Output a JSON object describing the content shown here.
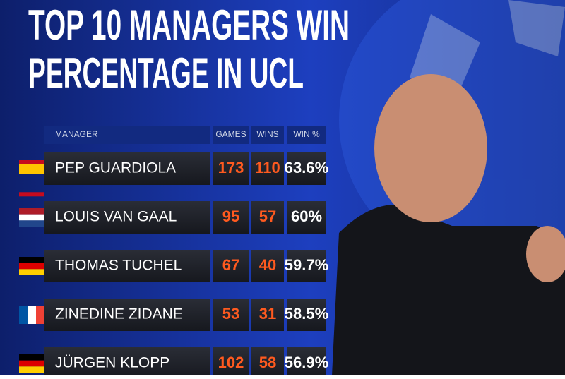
{
  "header": {
    "title_lines": [
      "TOP 10 MANAGERS WIN",
      "PERCENTAGE IN UCL"
    ]
  },
  "table": {
    "columns": [
      "MANAGER",
      "GAMES",
      "WINS",
      "WIN %"
    ],
    "rows": [
      [
        "PEP GUARDIOLA",
        "173",
        "110",
        "63.6%"
      ],
      [
        "LOUIS VAN GAAL",
        "95",
        "57",
        "60%"
      ],
      [
        "THOMAS TUCHEL",
        "67",
        "40",
        "59.7%"
      ],
      [
        "ZINEDINE ZIDANE",
        "53",
        "31",
        "58.5%"
      ],
      [
        "JÜRGEN KLOPP",
        "102",
        "58",
        "56.9%"
      ]
    ]
  }
}
